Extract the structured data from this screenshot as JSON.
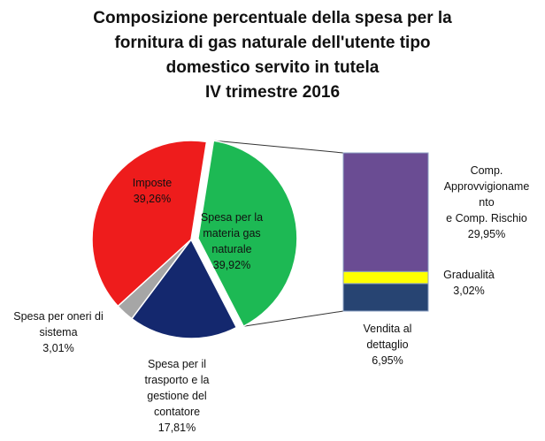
{
  "chart_data": {
    "type": "pie",
    "title_lines": [
      "Composizione percentuale della spesa per la",
      "fornitura di gas naturale dell'utente tipo",
      "domestico servito in tutela",
      "IV trimestre 2016"
    ],
    "pie_slices": [
      {
        "label_lines": [
          "Spesa per la",
          "materia gas",
          "naturale"
        ],
        "value": 39.92,
        "value_label": "39,92%",
        "color": "#1db954"
      },
      {
        "label_lines": [
          "Spesa per il",
          "trasporto e la",
          "gestione del",
          "contatore"
        ],
        "value": 17.81,
        "value_label": "17,81%",
        "color": "#14286e"
      },
      {
        "label_lines": [
          "Spesa per oneri di",
          "sistema"
        ],
        "value": 3.01,
        "value_label": "3,01%",
        "color": "#a6a6a6"
      },
      {
        "label_lines": [
          "Imposte"
        ],
        "value": 39.26,
        "value_label": "39,26%",
        "color": "#ee1c1c"
      }
    ],
    "breakdown_of": "Spesa per la materia gas naturale",
    "bar_segments": [
      {
        "label_lines": [
          "Vendita al",
          "dettaglio"
        ],
        "value": 6.95,
        "value_label": "6,95%",
        "color": "#274472"
      },
      {
        "label_lines": [
          "Gradualità"
        ],
        "value": 3.02,
        "value_label": "3,02%",
        "color": "#ffff00"
      },
      {
        "label_lines": [
          "Comp.",
          "Approvvigioname",
          "nto",
          "e  Comp. Rischio"
        ],
        "value": 29.95,
        "value_label": "29,95%",
        "color": "#6a4c93"
      }
    ]
  }
}
